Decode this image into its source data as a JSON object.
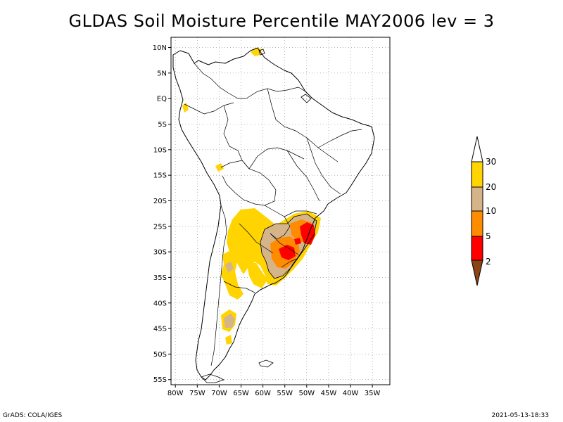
{
  "title": "GLDAS Soil Moisture Percentile MAY2006 lev = 3",
  "footer": {
    "left": "GrADS: COLA/IGES",
    "right": "2021-05-13-18:33"
  },
  "map": {
    "lon_range": [
      -81,
      -31
    ],
    "lat_range": [
      -56,
      12
    ],
    "lat_ticks": [
      {
        "value": 10,
        "label": "10N"
      },
      {
        "value": 5,
        "label": "5N"
      },
      {
        "value": 0,
        "label": "EQ"
      },
      {
        "value": -5,
        "label": "5S"
      },
      {
        "value": -10,
        "label": "10S"
      },
      {
        "value": -15,
        "label": "15S"
      },
      {
        "value": -20,
        "label": "20S"
      },
      {
        "value": -25,
        "label": "25S"
      },
      {
        "value": -30,
        "label": "30S"
      },
      {
        "value": -35,
        "label": "35S"
      },
      {
        "value": -40,
        "label": "40S"
      },
      {
        "value": -45,
        "label": "45S"
      },
      {
        "value": -50,
        "label": "50S"
      },
      {
        "value": -55,
        "label": "55S"
      }
    ],
    "lon_ticks": [
      {
        "value": -80,
        "label": "80W"
      },
      {
        "value": -75,
        "label": "75W"
      },
      {
        "value": -70,
        "label": "70W"
      },
      {
        "value": -65,
        "label": "65W"
      },
      {
        "value": -60,
        "label": "60W"
      },
      {
        "value": -55,
        "label": "55W"
      },
      {
        "value": -50,
        "label": "50W"
      },
      {
        "value": -45,
        "label": "45W"
      },
      {
        "value": -40,
        "label": "40W"
      },
      {
        "value": -35,
        "label": "35W"
      }
    ],
    "grid": "dotted"
  },
  "legend": {
    "levels": [
      "30",
      "20",
      "10",
      "5",
      "2"
    ],
    "colors": {
      "above_30": "#ffffff",
      "20_30": "#ffd400",
      "10_20": "#d6b48a",
      "5_10": "#ff8c00",
      "2_5": "#ff0000",
      "below_2": "#8b4513"
    },
    "placement": "right"
  }
}
